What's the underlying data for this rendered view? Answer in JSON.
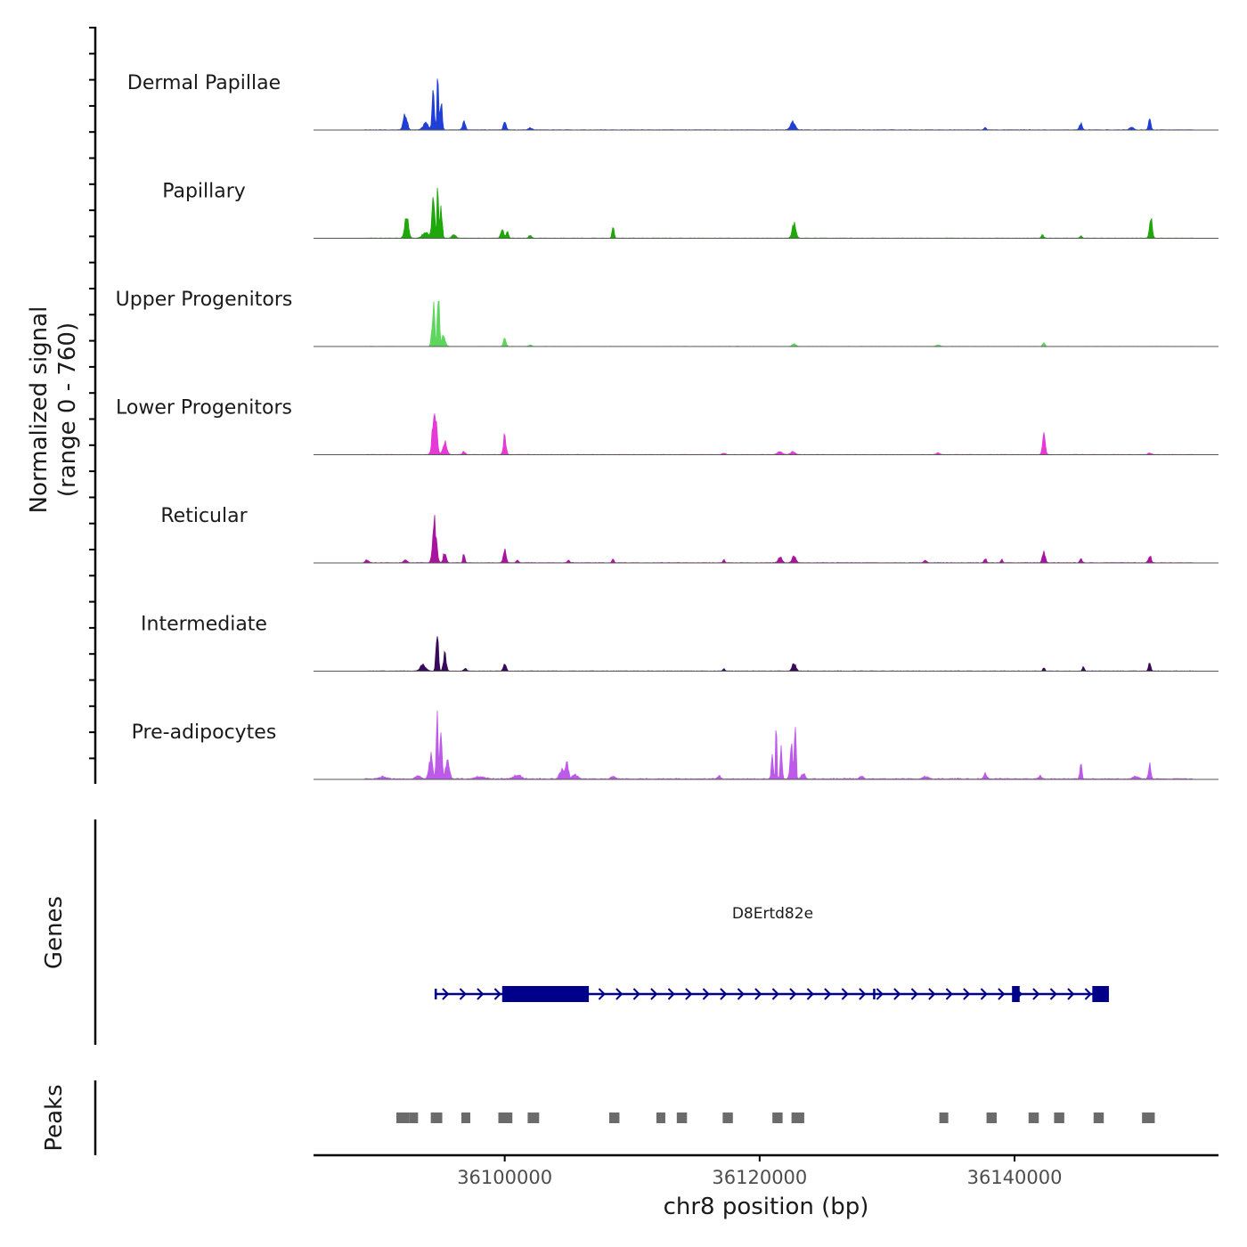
{
  "chart_data": {
    "type": "area",
    "title": "",
    "region": "chr8",
    "xlabel": "chr8 position (bp)",
    "ylabel_line1": "Normalized signal",
    "ylabel_line2": "(range 0 - 760)",
    "signal_range": [
      0,
      760
    ],
    "xlim": [
      36085000,
      36156000
    ],
    "x_ticks": [
      36100000,
      36120000,
      36140000
    ],
    "x_tick_labels": [
      "36100000",
      "36120000",
      "36140000"
    ],
    "tracks": [
      {
        "name": "Dermal Papillae",
        "color": "#1f3fd6",
        "baseline": 0.004,
        "peaks": [
          [
            36092200,
            0.3,
            200
          ],
          [
            36093800,
            0.12,
            300
          ],
          [
            36094400,
            0.7,
            120
          ],
          [
            36094750,
            1.0,
            80
          ],
          [
            36095000,
            0.55,
            120
          ],
          [
            36096800,
            0.16,
            150
          ],
          [
            36100000,
            0.14,
            150
          ],
          [
            36102000,
            0.04,
            200
          ],
          [
            36122600,
            0.16,
            250
          ],
          [
            36137700,
            0.05,
            120
          ],
          [
            36145200,
            0.12,
            150
          ],
          [
            36149200,
            0.05,
            200
          ],
          [
            36150600,
            0.26,
            120
          ]
        ]
      },
      {
        "name": "Papillary",
        "color": "#1ea80a",
        "baseline": 0.003,
        "peaks": [
          [
            36092300,
            0.48,
            200
          ],
          [
            36093800,
            0.1,
            350
          ],
          [
            36094400,
            0.7,
            150
          ],
          [
            36094750,
            0.92,
            80
          ],
          [
            36095000,
            0.6,
            120
          ],
          [
            36096000,
            0.08,
            200
          ],
          [
            36099800,
            0.18,
            150
          ],
          [
            36100200,
            0.14,
            120
          ],
          [
            36102000,
            0.05,
            150
          ],
          [
            36108500,
            0.18,
            120
          ],
          [
            36122700,
            0.28,
            200
          ],
          [
            36142200,
            0.07,
            120
          ],
          [
            36145200,
            0.04,
            120
          ],
          [
            36150700,
            0.36,
            150
          ]
        ]
      },
      {
        "name": "Upper Progenitors",
        "color": "#5ed65e",
        "baseline": 0.002,
        "peaks": [
          [
            36094400,
            0.75,
            150
          ],
          [
            36094800,
            1.05,
            100
          ],
          [
            36095200,
            0.2,
            200
          ],
          [
            36100000,
            0.14,
            150
          ],
          [
            36102000,
            0.03,
            150
          ],
          [
            36122700,
            0.05,
            200
          ],
          [
            36134000,
            0.03,
            200
          ],
          [
            36142300,
            0.08,
            120
          ]
        ]
      },
      {
        "name": "Lower Progenitors",
        "color": "#e63ad6",
        "baseline": 0.003,
        "peaks": [
          [
            36094500,
            0.9,
            220
          ],
          [
            36095300,
            0.25,
            200
          ],
          [
            36096800,
            0.06,
            150
          ],
          [
            36100000,
            0.34,
            150
          ],
          [
            36117200,
            0.03,
            150
          ],
          [
            36121600,
            0.06,
            250
          ],
          [
            36122600,
            0.05,
            250
          ],
          [
            36134000,
            0.03,
            200
          ],
          [
            36142300,
            0.4,
            150
          ],
          [
            36150600,
            0.03,
            200
          ]
        ]
      },
      {
        "name": "Reticular",
        "color": "#a8149e",
        "baseline": 0.004,
        "peaks": [
          [
            36089200,
            0.05,
            200
          ],
          [
            36092200,
            0.05,
            200
          ],
          [
            36094500,
            0.74,
            200
          ],
          [
            36095300,
            0.2,
            150
          ],
          [
            36096800,
            0.18,
            100
          ],
          [
            36100000,
            0.24,
            150
          ],
          [
            36101000,
            0.04,
            150
          ],
          [
            36105000,
            0.04,
            150
          ],
          [
            36108500,
            0.08,
            100
          ],
          [
            36117200,
            0.07,
            100
          ],
          [
            36121600,
            0.1,
            200
          ],
          [
            36122700,
            0.12,
            200
          ],
          [
            36133000,
            0.05,
            150
          ],
          [
            36137700,
            0.08,
            120
          ],
          [
            36139000,
            0.06,
            100
          ],
          [
            36142300,
            0.2,
            150
          ],
          [
            36145200,
            0.08,
            120
          ],
          [
            36150600,
            0.14,
            150
          ]
        ]
      },
      {
        "name": "Intermediate",
        "color": "#3a0a5a",
        "baseline": 0.003,
        "peaks": [
          [
            36093600,
            0.12,
            300
          ],
          [
            36094700,
            0.86,
            120
          ],
          [
            36095300,
            0.3,
            150
          ],
          [
            36096900,
            0.05,
            150
          ],
          [
            36100000,
            0.14,
            150
          ],
          [
            36117200,
            0.05,
            100
          ],
          [
            36122700,
            0.14,
            200
          ],
          [
            36142300,
            0.06,
            100
          ],
          [
            36145400,
            0.08,
            100
          ],
          [
            36150600,
            0.14,
            120
          ]
        ]
      },
      {
        "name": "Pre-adipocytes",
        "color": "#bd5aea",
        "baseline": 0.01,
        "peaks": [
          [
            36090500,
            0.04,
            400
          ],
          [
            36093200,
            0.06,
            300
          ],
          [
            36094200,
            0.42,
            200
          ],
          [
            36094700,
            1.1,
            100
          ],
          [
            36095000,
            0.9,
            120
          ],
          [
            36095500,
            0.35,
            200
          ],
          [
            36098000,
            0.04,
            500
          ],
          [
            36101000,
            0.07,
            400
          ],
          [
            36104500,
            0.18,
            250
          ],
          [
            36104900,
            0.28,
            150
          ],
          [
            36105500,
            0.08,
            300
          ],
          [
            36108500,
            0.06,
            200
          ],
          [
            36116800,
            0.06,
            150
          ],
          [
            36121000,
            0.45,
            100
          ],
          [
            36121300,
            1.4,
            60
          ],
          [
            36121700,
            0.6,
            100
          ],
          [
            36122800,
            1.15,
            80
          ],
          [
            36122500,
            0.6,
            150
          ],
          [
            36123400,
            0.1,
            200
          ],
          [
            36128000,
            0.05,
            200
          ],
          [
            36133000,
            0.04,
            300
          ],
          [
            36137700,
            0.1,
            150
          ],
          [
            36142000,
            0.05,
            200
          ],
          [
            36145200,
            0.32,
            100
          ],
          [
            36149500,
            0.05,
            300
          ],
          [
            36150600,
            0.26,
            120
          ]
        ]
      }
    ],
    "genes": [
      {
        "name": "D8Ertd82e",
        "color": "#00008b",
        "strand": "+",
        "start": 36094500,
        "end": 36147400,
        "exons": [
          [
            36094500,
            36094650
          ],
          [
            36099800,
            36106600
          ],
          [
            36128900,
            36129000
          ],
          [
            36139800,
            36140400
          ],
          [
            36146100,
            36147400
          ]
        ],
        "thick": [
          [
            36099800,
            36106600
          ],
          [
            36139800,
            36140400
          ],
          [
            36146100,
            36147400
          ]
        ]
      }
    ],
    "peaks_track_label": "Peaks",
    "genes_track_label": "Genes",
    "peak_color": "#6b6b6b",
    "peak_regions": [
      [
        36091500,
        36092500
      ],
      [
        36092500,
        36093200
      ],
      [
        36094200,
        36095100
      ],
      [
        36096600,
        36097300
      ],
      [
        36099500,
        36100600
      ],
      [
        36101800,
        36102700
      ],
      [
        36108200,
        36109000
      ],
      [
        36111900,
        36112600
      ],
      [
        36113500,
        36114300
      ],
      [
        36117100,
        36117900
      ],
      [
        36121000,
        36121800
      ],
      [
        36122500,
        36123500
      ],
      [
        36134100,
        36134800
      ],
      [
        36137800,
        36138600
      ],
      [
        36141100,
        36141900
      ],
      [
        36143100,
        36143900
      ],
      [
        36146200,
        36147000
      ],
      [
        36150000,
        36151000
      ]
    ]
  }
}
